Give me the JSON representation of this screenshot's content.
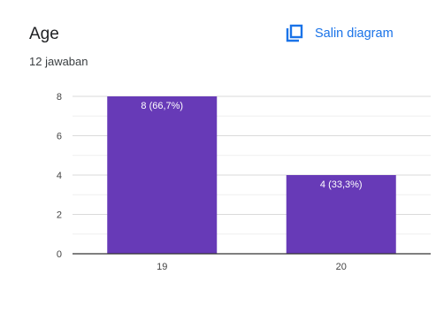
{
  "header": {
    "title": "Age",
    "response_count": "12 jawaban",
    "copy_button_label": "Salin diagram",
    "copy_icon": "copy-icon"
  },
  "colors": {
    "bar": "#673ab7",
    "accent": "#1a73e8",
    "grid": "#e6e6e6",
    "axis": "#333333"
  },
  "chart_data": {
    "type": "bar",
    "categories": [
      "19",
      "20"
    ],
    "values": [
      8,
      4
    ],
    "data_labels": [
      "8 (66,7%)",
      "4 (33,3%)"
    ],
    "ylim": [
      0,
      8
    ],
    "yticks": [
      "0",
      "2",
      "4",
      "6",
      "8"
    ],
    "grid": true,
    "title": "",
    "xlabel": "",
    "ylabel": ""
  }
}
